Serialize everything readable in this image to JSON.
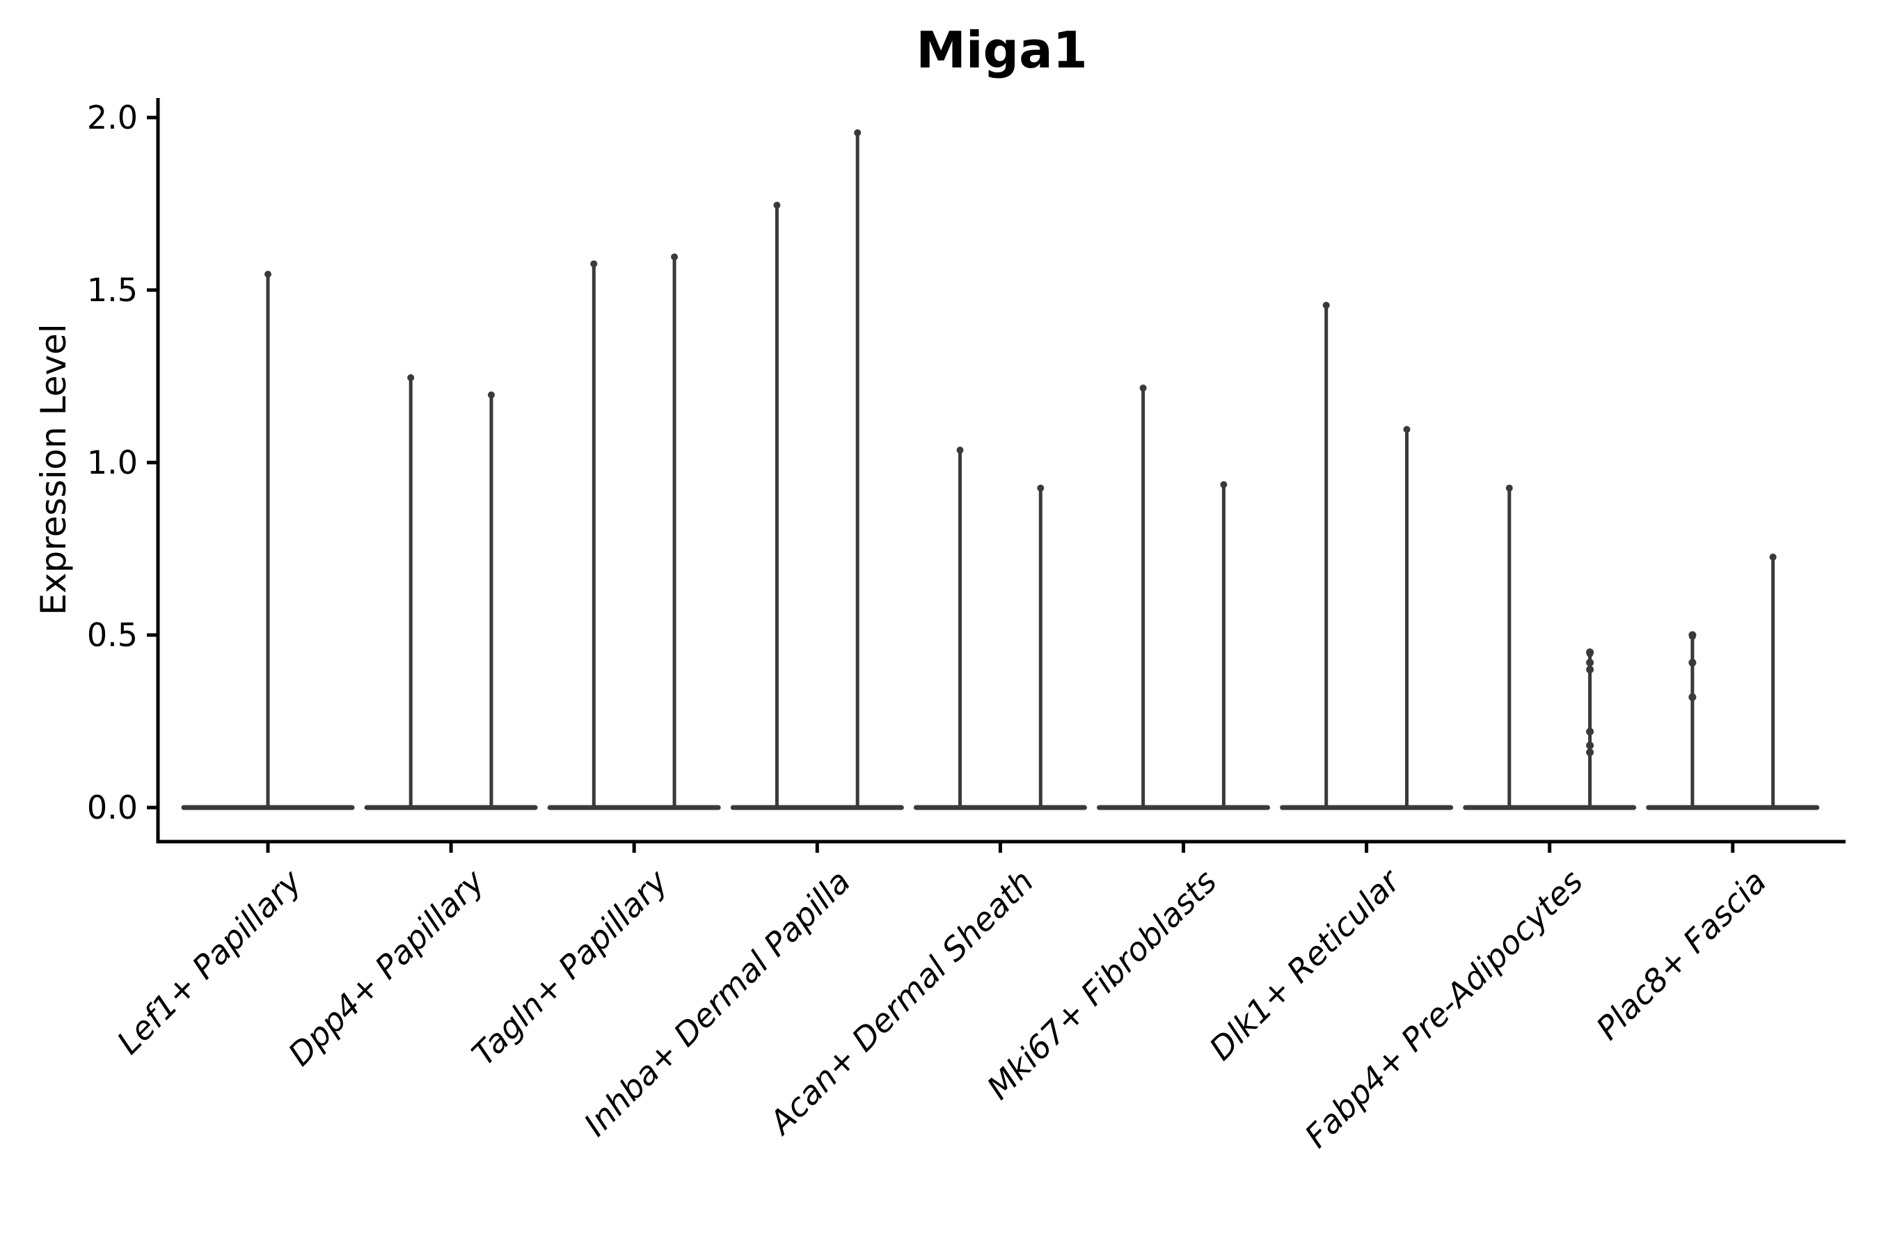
{
  "chart_data": {
    "type": "violin",
    "title": "Miga1",
    "ylabel": "Expression Level",
    "xlabel": "",
    "ylim": [
      -0.1,
      2.06
    ],
    "yticks": [
      {
        "label": "0.0",
        "value": 0.0
      },
      {
        "label": "0.5",
        "value": 0.5
      },
      {
        "label": "1.0",
        "value": 1.0
      },
      {
        "label": "1.5",
        "value": 1.5
      },
      {
        "label": "2.0",
        "value": 2.0
      }
    ],
    "categories": [
      "Lef1+ Papillary",
      "Dpp4+ Papillary",
      "Tagln+ Papillary",
      "Inhba+ Dermal Papilla",
      "Acan+ Dermal Sheath",
      "Mki67+ Fibroblasts",
      "Dlk1+ Reticular",
      "Fabp4+ Pre-Adipocytes",
      "Plac8+ Fascia"
    ],
    "violins": [
      {
        "category": "Lef1+ Papillary",
        "parts": [
          {
            "offset": 0.0,
            "max": 1.55,
            "points": []
          }
        ]
      },
      {
        "category": "Dpp4+ Papillary",
        "parts": [
          {
            "offset": -0.22,
            "max": 1.25,
            "points": []
          },
          {
            "offset": 0.22,
            "max": 1.2,
            "points": []
          }
        ]
      },
      {
        "category": "Tagln+ Papillary",
        "parts": [
          {
            "offset": -0.22,
            "max": 1.58,
            "points": []
          },
          {
            "offset": 0.22,
            "max": 1.6,
            "points": []
          }
        ]
      },
      {
        "category": "Inhba+ Dermal Papilla",
        "parts": [
          {
            "offset": -0.22,
            "max": 1.75,
            "points": []
          },
          {
            "offset": 0.22,
            "max": 1.96,
            "points": []
          }
        ]
      },
      {
        "category": "Acan+ Dermal Sheath",
        "parts": [
          {
            "offset": -0.22,
            "max": 1.04,
            "points": []
          },
          {
            "offset": 0.22,
            "max": 0.93,
            "points": []
          }
        ]
      },
      {
        "category": "Mki67+ Fibroblasts",
        "parts": [
          {
            "offset": -0.22,
            "max": 1.22,
            "points": []
          },
          {
            "offset": 0.22,
            "max": 0.94,
            "points": []
          }
        ]
      },
      {
        "category": "Dlk1+ Reticular",
        "parts": [
          {
            "offset": -0.22,
            "max": 1.46,
            "points": []
          },
          {
            "offset": 0.22,
            "max": 1.1,
            "points": []
          }
        ]
      },
      {
        "category": "Fabp4+ Pre-Adipocytes",
        "parts": [
          {
            "offset": -0.22,
            "max": 0.93,
            "points": []
          },
          {
            "offset": 0.22,
            "max": 0.45,
            "points": [
              0.45,
              0.42,
              0.4,
              0.22,
              0.18,
              0.16
            ]
          }
        ]
      },
      {
        "category": "Plac8+ Fascia",
        "parts": [
          {
            "offset": -0.22,
            "max": 0.5,
            "points": [
              0.5,
              0.42,
              0.32
            ]
          },
          {
            "offset": 0.22,
            "max": 0.73,
            "points": []
          }
        ]
      }
    ],
    "baseline_value": 0.0,
    "grid": false,
    "legend": "none",
    "colors": {
      "violin": "#3a3a3a",
      "axis": "#000000",
      "text": "#000000",
      "background": "#ffffff"
    }
  }
}
